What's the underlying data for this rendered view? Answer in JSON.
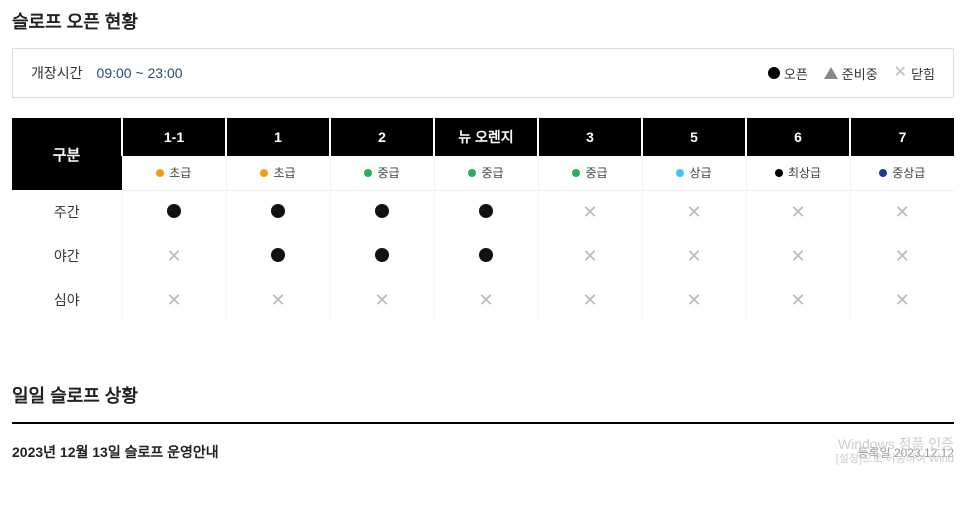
{
  "section1_title": "슬로프 오픈 현황",
  "open_hours_label": "개장시간",
  "open_hours_value": "09:00 ~ 23:00",
  "legend": {
    "open": "오픈",
    "ready": "준비중",
    "closed": "닫힘"
  },
  "row_header": "구분",
  "slopes": [
    {
      "name": "1-1",
      "level": "초급",
      "dot": "#f39c12"
    },
    {
      "name": "1",
      "level": "초급",
      "dot": "#f39c12"
    },
    {
      "name": "2",
      "level": "중급",
      "dot": "#27ae60"
    },
    {
      "name": "뉴 오렌지",
      "level": "중급",
      "dot": "#27ae60"
    },
    {
      "name": "3",
      "level": "중급",
      "dot": "#27ae60"
    },
    {
      "name": "5",
      "level": "상급",
      "dot": "#3cc7f4"
    },
    {
      "name": "6",
      "level": "최상급",
      "dot": "#000000"
    },
    {
      "name": "7",
      "level": "중상급",
      "dot": "#1a3a8a"
    }
  ],
  "time_rows": [
    {
      "label": "주간",
      "status": [
        "open",
        "open",
        "open",
        "open",
        "closed",
        "closed",
        "closed",
        "closed"
      ]
    },
    {
      "label": "야간",
      "status": [
        "closed",
        "open",
        "open",
        "open",
        "closed",
        "closed",
        "closed",
        "closed"
      ]
    },
    {
      "label": "심야",
      "status": [
        "closed",
        "closed",
        "closed",
        "closed",
        "closed",
        "closed",
        "closed",
        "closed"
      ]
    }
  ],
  "section2_title": "일일 슬로프 상황",
  "daily": {
    "title": "2023년 12월 13일 슬로프 운영안내",
    "reg": "등록일 2023.12.12"
  },
  "watermark_line1": "Windows 정품 인증",
  "watermark_line2": "[설정]으로 이동하여 Wind"
}
